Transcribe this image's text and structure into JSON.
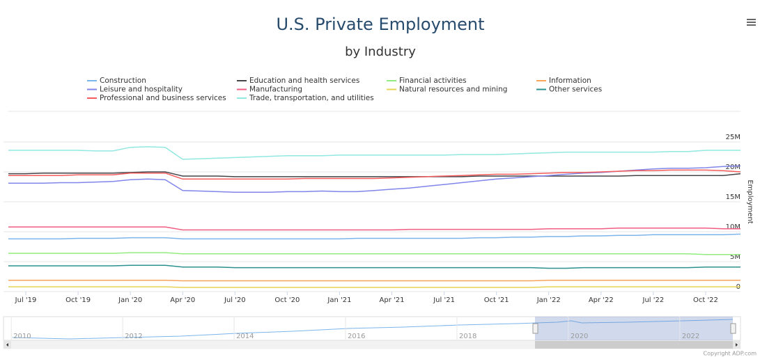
{
  "chart_data": {
    "type": "line",
    "title": "U.S. Private Employment",
    "subtitle": "by Industry",
    "y_axis_title": "Employment",
    "credits": "Copyright ADP.com",
    "x": [
      "2019-06",
      "2019-07",
      "2019-08",
      "2019-09",
      "2019-10",
      "2019-11",
      "2019-12",
      "2020-01",
      "2020-02",
      "2020-03",
      "2020-04",
      "2020-05",
      "2020-06",
      "2020-07",
      "2020-08",
      "2020-09",
      "2020-10",
      "2020-11",
      "2020-12",
      "2021-01",
      "2021-02",
      "2021-03",
      "2021-04",
      "2021-05",
      "2021-06",
      "2021-07",
      "2021-08",
      "2021-09",
      "2021-10",
      "2021-11",
      "2021-12",
      "2022-01",
      "2022-02",
      "2022-03",
      "2022-04",
      "2022-05",
      "2022-06",
      "2022-07",
      "2022-08",
      "2022-09",
      "2022-10",
      "2022-11",
      "2022-12"
    ],
    "xlim": [
      "2019-06",
      "2022-12"
    ],
    "xticks": [
      {
        "value": "2019-07",
        "label": "Jul '19"
      },
      {
        "value": "2019-10",
        "label": "Oct '19"
      },
      {
        "value": "2020-01",
        "label": "Jan '20"
      },
      {
        "value": "2020-04",
        "label": "Apr '20"
      },
      {
        "value": "2020-07",
        "label": "Jul '20"
      },
      {
        "value": "2020-10",
        "label": "Oct '20"
      },
      {
        "value": "2021-01",
        "label": "Jan '21"
      },
      {
        "value": "2021-04",
        "label": "Apr '21"
      },
      {
        "value": "2021-07",
        "label": "Jul '21"
      },
      {
        "value": "2021-10",
        "label": "Oct '21"
      },
      {
        "value": "2022-01",
        "label": "Jan '22"
      },
      {
        "value": "2022-04",
        "label": "Apr '22"
      },
      {
        "value": "2022-07",
        "label": "Jul '22"
      },
      {
        "value": "2022-10",
        "label": "Oct '22"
      }
    ],
    "ylim": [
      0,
      30000000
    ],
    "yticks": [
      0,
      {
        "value": 5000000,
        "label": "5M"
      },
      {
        "value": 10000000,
        "label": "10M"
      },
      {
        "value": 15000000,
        "label": "15M"
      },
      {
        "value": 20000000,
        "label": "20M"
      },
      {
        "value": 25000000,
        "label": "25M"
      }
    ],
    "grid": true,
    "series": [
      {
        "name": "Construction",
        "color": "#7cb5ec",
        "values": [
          8800000.0,
          8800000.0,
          8800000.0,
          8800000.0,
          8900000.0,
          8900000.0,
          8900000.0,
          9000000.0,
          9000000.0,
          9000000.0,
          8800000.0,
          8800000.0,
          8800000.0,
          8800000.0,
          8800000.0,
          8800000.0,
          8800000.0,
          8800000.0,
          8800000.0,
          8800000.0,
          8900000.0,
          8900000.0,
          8900000.0,
          8900000.0,
          8900000.0,
          8900000.0,
          8900000.0,
          9000000.0,
          9000000.0,
          9100000.0,
          9100000.0,
          9200000.0,
          9200000.0,
          9300000.0,
          9300000.0,
          9400000.0,
          9400000.0,
          9500000.0,
          9500000.0,
          9500000.0,
          9500000.0,
          9500000.0,
          9600000.0
        ]
      },
      {
        "name": "Education and health services",
        "color": "#434348",
        "values": [
          19700000.0,
          19700000.0,
          19800000.0,
          19800000.0,
          19800000.0,
          19800000.0,
          19800000.0,
          19900000.0,
          20000000.0,
          20000000.0,
          19300000.0,
          19300000.0,
          19300000.0,
          19200000.0,
          19200000.0,
          19200000.0,
          19200000.0,
          19200000.0,
          19200000.0,
          19200000.0,
          19200000.0,
          19200000.0,
          19200000.0,
          19200000.0,
          19200000.0,
          19200000.0,
          19200000.0,
          19300000.0,
          19300000.0,
          19300000.0,
          19300000.0,
          19300000.0,
          19300000.0,
          19300000.0,
          19300000.0,
          19300000.0,
          19400000.0,
          19400000.0,
          19400000.0,
          19400000.0,
          19400000.0,
          19400000.0,
          19700000.0
        ]
      },
      {
        "name": "Financial activities",
        "color": "#90ed7d",
        "values": [
          6400000.0,
          6400000.0,
          6400000.0,
          6400000.0,
          6400000.0,
          6400000.0,
          6400000.0,
          6500000.0,
          6500000.0,
          6500000.0,
          6300000.0,
          6300000.0,
          6300000.0,
          6300000.0,
          6300000.0,
          6300000.0,
          6300000.0,
          6300000.0,
          6300000.0,
          6300000.0,
          6300000.0,
          6300000.0,
          6300000.0,
          6300000.0,
          6300000.0,
          6300000.0,
          6300000.0,
          6300000.0,
          6300000.0,
          6300000.0,
          6300000.0,
          6300000.0,
          6300000.0,
          6300000.0,
          6300000.0,
          6300000.0,
          6300000.0,
          6300000.0,
          6300000.0,
          6300000.0,
          6200000.0,
          6200000.0,
          6200000.0
        ]
      },
      {
        "name": "Information",
        "color": "#f7a35c",
        "values": [
          1900000.0,
          1900000.0,
          1900000.0,
          1900000.0,
          1900000.0,
          1900000.0,
          1900000.0,
          1900000.0,
          1900000.0,
          1900000.0,
          1800000.0,
          1800000.0,
          1800000.0,
          1800000.0,
          1800000.0,
          1800000.0,
          1800000.0,
          1800000.0,
          1800000.0,
          1800000.0,
          1800000.0,
          1800000.0,
          1800000.0,
          1800000.0,
          1800000.0,
          1800000.0,
          1800000.0,
          1800000.0,
          1800000.0,
          1800000.0,
          1800000.0,
          1900000.0,
          1900000.0,
          1900000.0,
          1900000.0,
          1900000.0,
          1900000.0,
          1900000.0,
          1900000.0,
          1900000.0,
          1900000.0,
          1900000.0,
          1900000.0
        ]
      },
      {
        "name": "Leisure and hospitality",
        "color": "#8085e9",
        "values": [
          18100000.0,
          18100000.0,
          18100000.0,
          18200000.0,
          18200000.0,
          18300000.0,
          18400000.0,
          18700000.0,
          18800000.0,
          18700000.0,
          16900000.0,
          16800000.0,
          16700000.0,
          16600000.0,
          16600000.0,
          16600000.0,
          16700000.0,
          16700000.0,
          16800000.0,
          16700000.0,
          16700000.0,
          16900000.0,
          17100000.0,
          17300000.0,
          17600000.0,
          17900000.0,
          18200000.0,
          18500000.0,
          18800000.0,
          19000000.0,
          19200000.0,
          19400000.0,
          19600000.0,
          19800000.0,
          19900000.0,
          20100000.0,
          20300000.0,
          20500000.0,
          20600000.0,
          20600000.0,
          20700000.0,
          20900000.0,
          21000000.0
        ]
      },
      {
        "name": "Manufacturing",
        "color": "#f15c80",
        "values": [
          10800000.0,
          10800000.0,
          10800000.0,
          10800000.0,
          10800000.0,
          10800000.0,
          10800000.0,
          10800000.0,
          10800000.0,
          10800000.0,
          10300000.0,
          10300000.0,
          10300000.0,
          10300000.0,
          10300000.0,
          10300000.0,
          10300000.0,
          10300000.0,
          10300000.0,
          10300000.0,
          10300000.0,
          10300000.0,
          10300000.0,
          10400000.0,
          10400000.0,
          10400000.0,
          10400000.0,
          10400000.0,
          10400000.0,
          10400000.0,
          10400000.0,
          10500000.0,
          10500000.0,
          10500000.0,
          10500000.0,
          10600000.0,
          10600000.0,
          10600000.0,
          10600000.0,
          10600000.0,
          10600000.0,
          10500000.0,
          10500000.0
        ]
      },
      {
        "name": "Natural resources and mining",
        "color": "#e4d354",
        "values": [
          800000.0,
          800000.0,
          800000.0,
          800000.0,
          800000.0,
          800000.0,
          800000.0,
          800000.0,
          800000.0,
          800000.0,
          700000.0,
          700000.0,
          700000.0,
          700000.0,
          700000.0,
          700000.0,
          700000.0,
          700000.0,
          700000.0,
          700000.0,
          700000.0,
          700000.0,
          700000.0,
          700000.0,
          700000.0,
          700000.0,
          700000.0,
          700000.0,
          700000.0,
          700000.0,
          700000.0,
          800000.0,
          800000.0,
          800000.0,
          800000.0,
          800000.0,
          800000.0,
          800000.0,
          800000.0,
          800000.0,
          800000.0,
          800000.0,
          800000.0
        ]
      },
      {
        "name": "Other services",
        "color": "#2b908f",
        "values": [
          4300000.0,
          4300000.0,
          4300000.0,
          4300000.0,
          4300000.0,
          4300000.0,
          4300000.0,
          4400000.0,
          4400000.0,
          4400000.0,
          4100000.0,
          4100000.0,
          4100000.0,
          4000000.0,
          4000000.0,
          4000000.0,
          4000000.0,
          4000000.0,
          4000000.0,
          4000000.0,
          4000000.0,
          4000000.0,
          4000000.0,
          4000000.0,
          4000000.0,
          4000000.0,
          4000000.0,
          4000000.0,
          4000000.0,
          4000000.0,
          4000000.0,
          3900000.0,
          3900000.0,
          4000000.0,
          4000000.0,
          4000000.0,
          4000000.0,
          4000000.0,
          4000000.0,
          4000000.0,
          4100000.0,
          4100000.0,
          4100000.0
        ]
      },
      {
        "name": "Professional and business services",
        "color": "#f45b5b",
        "values": [
          19400000.0,
          19400000.0,
          19400000.0,
          19400000.0,
          19500000.0,
          19500000.0,
          19500000.0,
          19800000.0,
          19800000.0,
          19800000.0,
          18800000.0,
          18800000.0,
          18800000.0,
          18800000.0,
          18800000.0,
          18800000.0,
          18800000.0,
          18900000.0,
          18900000.0,
          18900000.0,
          18900000.0,
          18900000.0,
          19000000.0,
          19100000.0,
          19200000.0,
          19300000.0,
          19400000.0,
          19500000.0,
          19600000.0,
          19600000.0,
          19700000.0,
          19800000.0,
          19900000.0,
          19900000.0,
          20000000.0,
          20100000.0,
          20200000.0,
          20200000.0,
          20300000.0,
          20300000.0,
          20300000.0,
          20200000.0,
          20000000.0
        ]
      },
      {
        "name": "Trade, transportation, and utilities",
        "color": "#91e8e1",
        "values": [
          23600000.0,
          23600000.0,
          23600000.0,
          23600000.0,
          23600000.0,
          23500000.0,
          23500000.0,
          24100000.0,
          24200000.0,
          24100000.0,
          22100000.0,
          22200000.0,
          22300000.0,
          22400000.0,
          22500000.0,
          22600000.0,
          22700000.0,
          22700000.0,
          22700000.0,
          22800000.0,
          22800000.0,
          22800000.0,
          22800000.0,
          22800000.0,
          22800000.0,
          22800000.0,
          22900000.0,
          22900000.0,
          22900000.0,
          23000000.0,
          23100000.0,
          23200000.0,
          23300000.0,
          23300000.0,
          23300000.0,
          23300000.0,
          23300000.0,
          23300000.0,
          23400000.0,
          23400000.0,
          23600000.0,
          23600000.0,
          23600000.0
        ]
      }
    ],
    "navigator": {
      "xlim": [
        2009.86,
        2023.09
      ],
      "xticks": [
        2010,
        2012,
        2014,
        2016,
        2018,
        2020,
        2022
      ]
    }
  }
}
